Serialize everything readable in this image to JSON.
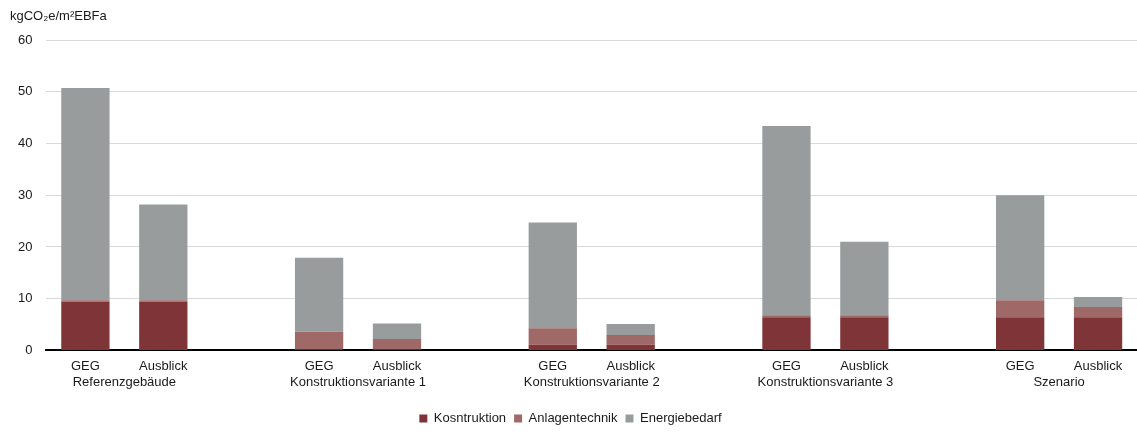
{
  "chart_data": {
    "type": "bar",
    "stacked": true,
    "ylabel": "kgCO₂e/m²EBFa",
    "categories": [
      "GEG",
      "Ausblick",
      null,
      "GEG",
      "Ausblick",
      null,
      "GEG",
      "Ausblick",
      null,
      "GEG",
      "Ausblick",
      null,
      "GEG",
      "Ausblick"
    ],
    "series": [
      {
        "name": "Kosntruktion",
        "color": "#7f3437",
        "values": [
          9.4,
          9.4,
          null,
          0.2,
          0.2,
          null,
          1.1,
          1.1,
          null,
          6.4,
          6.4,
          null,
          6.4,
          6.4
        ]
      },
      {
        "name": "Anlagentechnik",
        "color": "#9e6967",
        "values": [
          0.3,
          0.3,
          null,
          3.4,
          2.0,
          null,
          3.2,
          1.9,
          null,
          0.4,
          0.4,
          null,
          3.3,
          2.0
        ]
      },
      {
        "name": "Energiebedarf",
        "color": "#999c9c",
        "values": [
          41.0,
          18.5,
          null,
          14.3,
          3.0,
          null,
          20.4,
          2.1,
          null,
          36.6,
          14.2,
          null,
          20.3,
          1.9
        ]
      }
    ],
    "annotations": [
      "Referenzgebäude",
      "Konstruktionsvariante 1",
      "Konstruktionsvariante 2",
      "Konstruktionsvariante 3",
      "Szenario"
    ],
    "ylim": [
      0,
      60
    ],
    "yticks": [
      0,
      10,
      20,
      30,
      40,
      50,
      60
    ],
    "grid": "y",
    "legend": "bottom"
  }
}
